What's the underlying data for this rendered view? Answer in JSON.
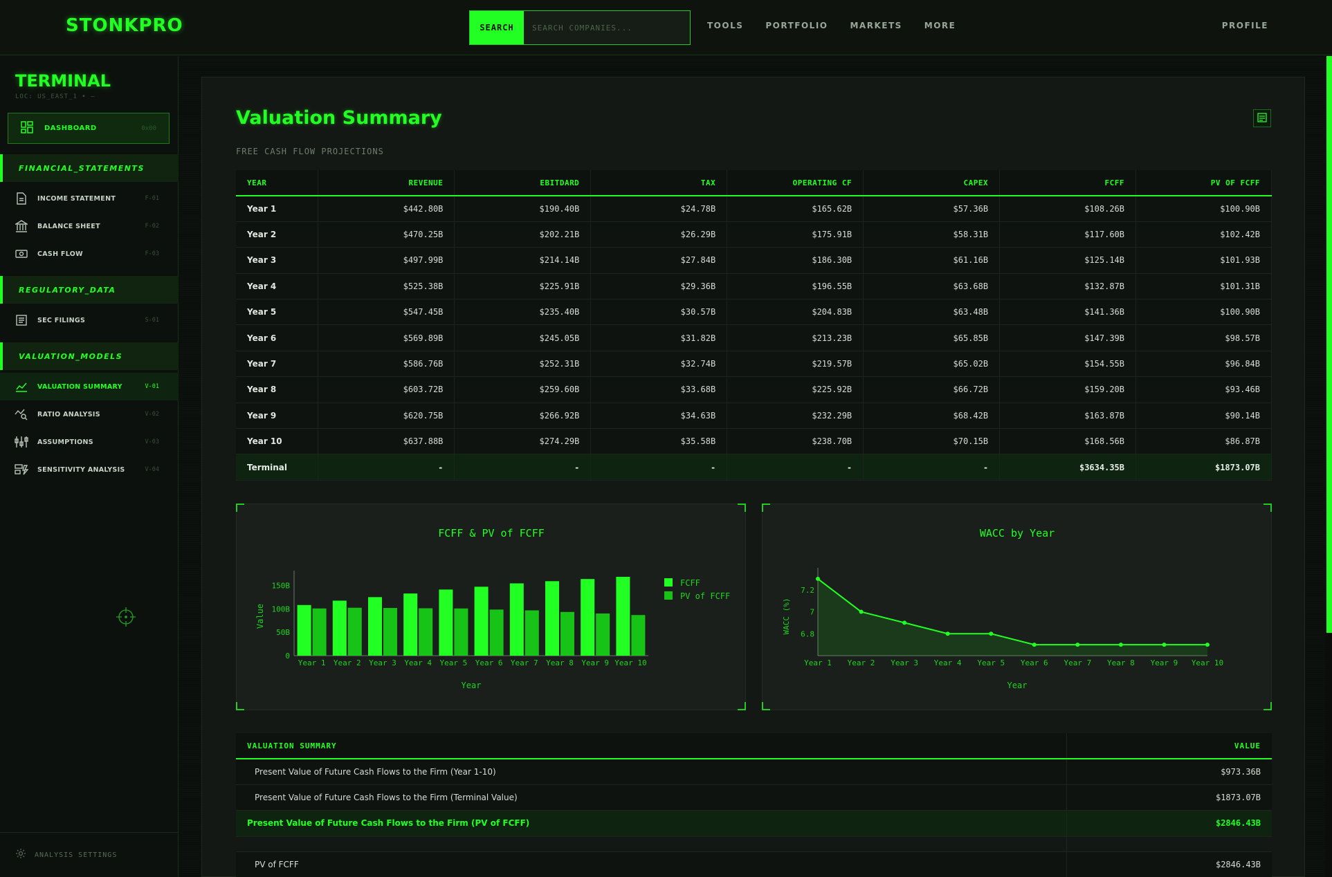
{
  "header": {
    "brand": "STONKPRO",
    "search_label": "SEARCH",
    "search_placeholder": "SEARCH COMPANIES...",
    "nav": [
      "TOOLS",
      "PORTFOLIO",
      "MARKETS",
      "MORE"
    ],
    "profile": "PROFILE"
  },
  "sidebar": {
    "title": "TERMINAL",
    "loc": "LOC: US_EAST_1 • —",
    "dashboard": {
      "label": "DASHBOARD",
      "code": "0x00"
    },
    "sections": {
      "financial": "FINANCIAL_STATEMENTS",
      "regulatory": "REGULATORY_DATA",
      "valuation": "VALUATION_MODELS"
    },
    "items": {
      "income": {
        "label": "INCOME STATEMENT",
        "code": "F-01"
      },
      "balance": {
        "label": "BALANCE SHEET",
        "code": "F-02"
      },
      "cashflow": {
        "label": "CASH FLOW",
        "code": "F-03"
      },
      "sec": {
        "label": "SEC FILINGS",
        "code": "S-01"
      },
      "valsum": {
        "label": "VALUATION SUMMARY",
        "code": "V-01"
      },
      "ratio": {
        "label": "RATIO ANALYSIS",
        "code": "V-02"
      },
      "assumptions": {
        "label": "ASSUMPTIONS",
        "code": "V-03"
      },
      "sensitivity": {
        "label": "SENSITIVITY ANALYSIS",
        "code": "V-04"
      }
    },
    "settings": "ANALYSIS SETTINGS"
  },
  "main": {
    "title": "Valuation Summary",
    "subtitle": "FREE CASH FLOW PROJECTIONS",
    "table": {
      "headers": [
        "YEAR",
        "REVENUE",
        "EBITDARD",
        "TAX",
        "OPERATING CF",
        "CAPEX",
        "FCFF",
        "PV OF FCFF"
      ],
      "rows": [
        [
          "Year 1",
          "$442.80B",
          "$190.40B",
          "$24.78B",
          "$165.62B",
          "$57.36B",
          "$108.26B",
          "$100.90B"
        ],
        [
          "Year 2",
          "$470.25B",
          "$202.21B",
          "$26.29B",
          "$175.91B",
          "$58.31B",
          "$117.60B",
          "$102.42B"
        ],
        [
          "Year 3",
          "$497.99B",
          "$214.14B",
          "$27.84B",
          "$186.30B",
          "$61.16B",
          "$125.14B",
          "$101.93B"
        ],
        [
          "Year 4",
          "$525.38B",
          "$225.91B",
          "$29.36B",
          "$196.55B",
          "$63.68B",
          "$132.87B",
          "$101.31B"
        ],
        [
          "Year 5",
          "$547.45B",
          "$235.40B",
          "$30.57B",
          "$204.83B",
          "$63.48B",
          "$141.36B",
          "$100.90B"
        ],
        [
          "Year 6",
          "$569.89B",
          "$245.05B",
          "$31.82B",
          "$213.23B",
          "$65.85B",
          "$147.39B",
          "$98.57B"
        ],
        [
          "Year 7",
          "$586.76B",
          "$252.31B",
          "$32.74B",
          "$219.57B",
          "$65.02B",
          "$154.55B",
          "$96.84B"
        ],
        [
          "Year 8",
          "$603.72B",
          "$259.60B",
          "$33.68B",
          "$225.92B",
          "$66.72B",
          "$159.20B",
          "$93.46B"
        ],
        [
          "Year 9",
          "$620.75B",
          "$266.92B",
          "$34.63B",
          "$232.29B",
          "$68.42B",
          "$163.87B",
          "$90.14B"
        ],
        [
          "Year 10",
          "$637.88B",
          "$274.29B",
          "$35.58B",
          "$238.70B",
          "$70.15B",
          "$168.56B",
          "$86.87B"
        ]
      ],
      "terminal": [
        "Terminal",
        "-",
        "-",
        "-",
        "-",
        "-",
        "$3634.35B",
        "$1873.07B"
      ]
    },
    "summary": {
      "headers": [
        "VALUATION SUMMARY",
        "VALUE"
      ],
      "rows": [
        {
          "label": "Present Value of Future Cash Flows to the Firm (Year 1-10)",
          "value": "$973.36B"
        },
        {
          "label": "Present Value of Future Cash Flows to the Firm (Terminal Value)",
          "value": "$1873.07B"
        },
        {
          "label": "Present Value of Future Cash Flows to the Firm (PV of FCFF)",
          "value": "$2846.43B"
        },
        {
          "label": "PV of FCFF",
          "value": "$2846.43B"
        }
      ]
    }
  },
  "colors": {
    "accent": "#22ff22",
    "accent_dark": "#18c918",
    "bg": "#0b0f0b"
  },
  "chart_data": [
    {
      "type": "bar",
      "title": "FCFF & PV of FCFF",
      "xlabel": "Year",
      "ylabel": "Value",
      "categories": [
        "Year 1",
        "Year 2",
        "Year 3",
        "Year 4",
        "Year 5",
        "Year 6",
        "Year 7",
        "Year 8",
        "Year 9",
        "Year 10"
      ],
      "series": [
        {
          "name": "FCFF",
          "values": [
            108.26,
            117.6,
            125.14,
            132.87,
            141.36,
            147.39,
            154.55,
            159.2,
            163.87,
            168.56
          ]
        },
        {
          "name": "PV of FCFF",
          "values": [
            100.9,
            102.42,
            101.93,
            101.31,
            100.9,
            98.57,
            96.84,
            93.46,
            90.14,
            86.87
          ]
        }
      ],
      "ylim": [
        0,
        170
      ],
      "yticks": [
        {
          "v": 0,
          "label": "0"
        },
        {
          "v": 50,
          "label": "50B"
        },
        {
          "v": 100,
          "label": "100B"
        },
        {
          "v": 150,
          "label": "150B"
        }
      ],
      "legend": "top-right"
    },
    {
      "type": "area",
      "title": "WACC by Year",
      "xlabel": "Year",
      "ylabel": "WACC (%)",
      "categories": [
        "Year 1",
        "Year 2",
        "Year 3",
        "Year 4",
        "Year 5",
        "Year 6",
        "Year 7",
        "Year 8",
        "Year 9",
        "Year 10"
      ],
      "values": [
        7.3,
        7.0,
        6.9,
        6.8,
        6.8,
        6.7,
        6.7,
        6.7,
        6.7,
        6.7
      ],
      "ylim": [
        6.6,
        7.35
      ],
      "yticks": [
        {
          "v": 6.8,
          "label": "6.8"
        },
        {
          "v": 7.0,
          "label": "7"
        },
        {
          "v": 7.2,
          "label": "7.2"
        }
      ]
    }
  ]
}
